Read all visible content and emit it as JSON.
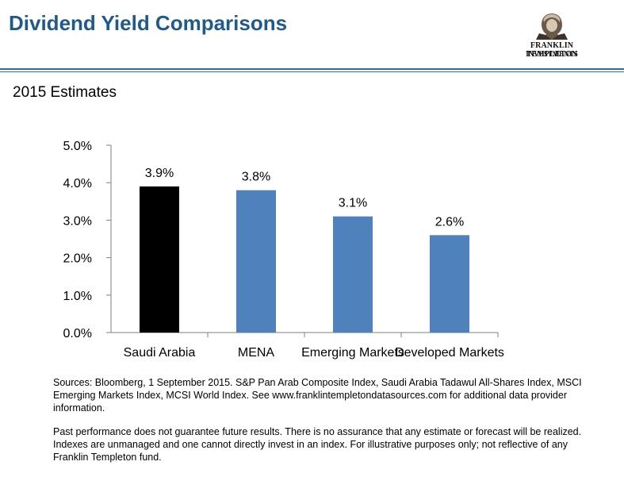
{
  "header": {
    "title": "Dividend Yield Comparisons",
    "logo_line1": "FRANKLIN TEMPLETON",
    "logo_line2": "INVESTMENTS",
    "logo_icon": "franklin-portrait-icon"
  },
  "subtitle": "2015 Estimates",
  "chart_data": {
    "type": "bar",
    "categories": [
      "Saudi Arabia",
      "MENA",
      "Emerging Markets",
      "Developed Markets"
    ],
    "values": [
      3.9,
      3.8,
      3.1,
      2.6
    ],
    "data_labels": [
      "3.9%",
      "3.8%",
      "3.1%",
      "2.6%"
    ],
    "colors": [
      "#000000",
      "#4f81bd",
      "#4f81bd",
      "#4f81bd"
    ],
    "yticks": [
      0,
      1,
      2,
      3,
      4,
      5
    ],
    "ytick_labels": [
      "0.0%",
      "1.0%",
      "2.0%",
      "3.0%",
      "4.0%",
      "5.0%"
    ],
    "ylim": [
      0,
      5
    ],
    "title": "",
    "xlabel": "",
    "ylabel": "",
    "grid": false,
    "legend": false
  },
  "notes": {
    "sources": "Sources: Bloomberg, 1 September 2015. S&P Pan Arab Composite Index, Saudi Arabia Tadawul All-Shares Index, MSCI Emerging Markets Index, MCSI World Index. See www.franklintempletondatasources.com for additional data provider information.",
    "disclaimer": "Past performance does not guarantee future results. There is no assurance that any estimate or forecast will be realized. Indexes are unmanaged and one cannot directly invest in an index. For illustrative purposes only; not reflective of any Franklin Templeton fund."
  }
}
